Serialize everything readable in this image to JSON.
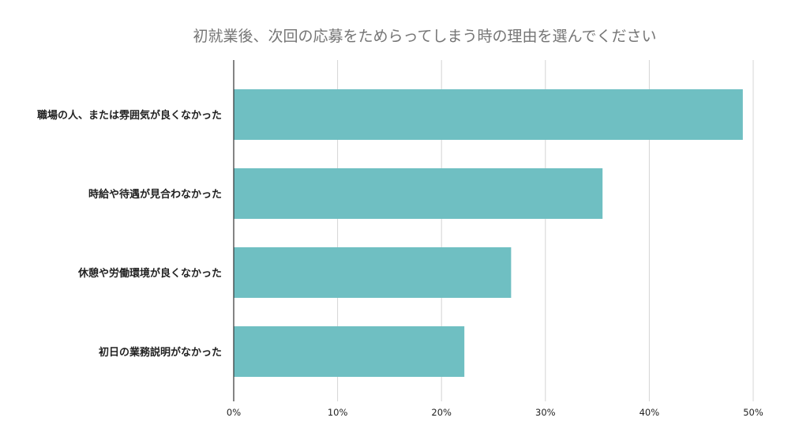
{
  "chart_data": {
    "type": "bar",
    "orientation": "horizontal",
    "title": "初就業後、次回の応募をためらってしまう時の理由を選んでください",
    "categories": [
      "職場の人、または雰囲気が良くなかった",
      "時給や待遇が見合わなかった",
      "休憩や労働環境が良くなかった",
      "初日の業務説明がなかった"
    ],
    "values": [
      49,
      35.5,
      26.7,
      22.2
    ],
    "xlim": [
      0,
      50
    ],
    "ticks": [
      0,
      10,
      20,
      30,
      40,
      50
    ],
    "tick_labels": [
      "0%",
      "10%",
      "20%",
      "30%",
      "40%",
      "50%"
    ],
    "grid": true,
    "legend": "none",
    "bar_color": "#6fbfc2"
  }
}
